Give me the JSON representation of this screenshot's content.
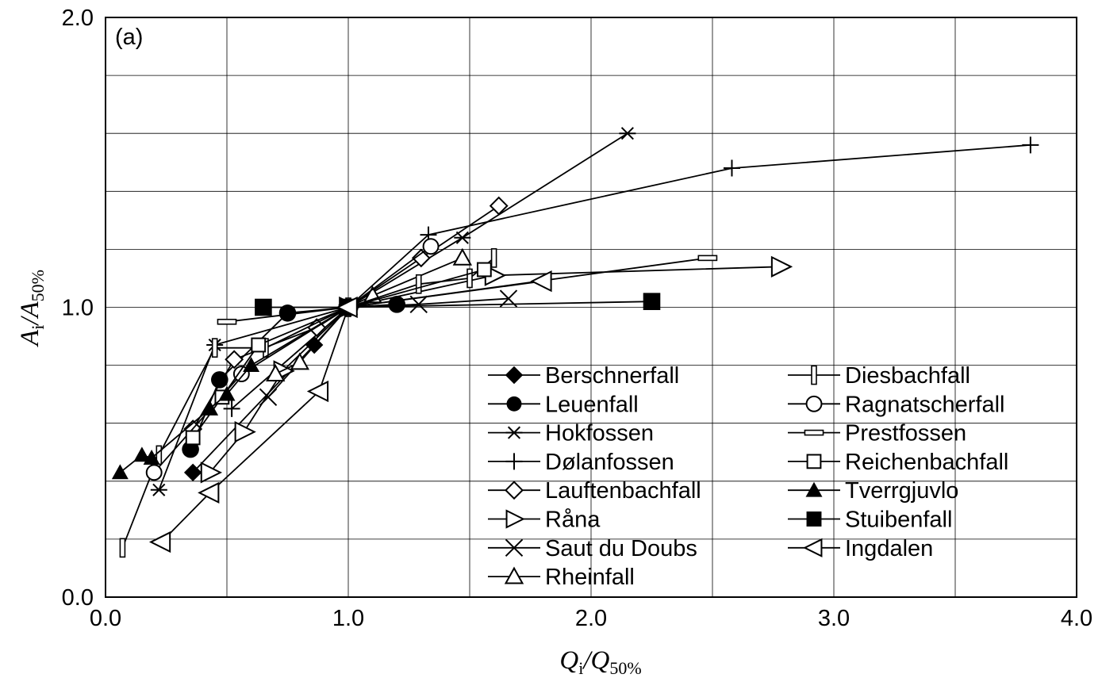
{
  "chart_data": {
    "type": "scatter",
    "panel_label": "(a)",
    "xlabel": {
      "main": "Q",
      "sub1": "i",
      "sep": "/Q",
      "sub2": "50%"
    },
    "ylabel": {
      "main": "A",
      "sub1": "i",
      "sep": "/A",
      "sub2": "50%"
    },
    "xlim": [
      0,
      4
    ],
    "ylim": [
      0,
      2
    ],
    "grid": true,
    "x_ticks": [
      "0.0",
      "1.0",
      "2.0",
      "3.0",
      "4.0"
    ],
    "y_ticks": [
      "0.0",
      "1.0",
      "2.0"
    ],
    "legend_position": "lower-right",
    "series": [
      {
        "name": "Berschnerfall",
        "marker": "diamond-filled",
        "points": [
          [
            0.36,
            0.43
          ],
          [
            0.86,
            0.87
          ],
          [
            1.0,
            1.0
          ]
        ]
      },
      {
        "name": "Leuenfall",
        "marker": "circle-filled",
        "points": [
          [
            0.35,
            0.51
          ],
          [
            0.47,
            0.75
          ],
          [
            0.75,
            0.98
          ],
          [
            1.0,
            1.0
          ],
          [
            1.2,
            1.01
          ]
        ]
      },
      {
        "name": "Hokfossen",
        "marker": "asterisk",
        "points": [
          [
            0.22,
            0.37
          ],
          [
            0.45,
            0.87
          ],
          [
            1.0,
            1.0
          ],
          [
            1.47,
            1.24
          ],
          [
            2.15,
            1.6
          ]
        ]
      },
      {
        "name": "Dølanfossen",
        "marker": "plus",
        "points": [
          [
            0.52,
            0.65
          ],
          [
            1.0,
            1.0
          ],
          [
            1.33,
            1.25
          ],
          [
            2.58,
            1.48
          ],
          [
            3.81,
            1.56
          ]
        ]
      },
      {
        "name": "Lauftenbachfall",
        "marker": "diamond-open",
        "points": [
          [
            0.36,
            0.58
          ],
          [
            0.53,
            0.82
          ],
          [
            0.87,
            0.93
          ],
          [
            1.0,
            1.0
          ],
          [
            1.3,
            1.17
          ],
          [
            1.62,
            1.35
          ]
        ]
      },
      {
        "name": "Råna",
        "marker": "triangle-right-open",
        "points": [
          [
            0.43,
            0.43
          ],
          [
            0.57,
            0.57
          ],
          [
            0.73,
            0.78
          ],
          [
            1.0,
            1.0
          ],
          [
            1.6,
            1.11
          ],
          [
            2.78,
            1.14
          ]
        ]
      },
      {
        "name": "Saut du Doubs",
        "marker": "x",
        "points": [
          [
            0.67,
            0.69
          ],
          [
            1.0,
            1.0
          ],
          [
            1.29,
            1.01
          ],
          [
            1.66,
            1.03
          ]
        ]
      },
      {
        "name": "Rheinfall",
        "marker": "triangle-up-open",
        "points": [
          [
            0.7,
            0.77
          ],
          [
            0.8,
            0.81
          ],
          [
            1.0,
            1.0
          ],
          [
            1.1,
            1.04
          ],
          [
            1.47,
            1.17
          ]
        ]
      },
      {
        "name": "Diesbachfall",
        "marker": "bar-vertical-open",
        "points": [
          [
            0.07,
            0.17
          ],
          [
            0.22,
            0.49
          ],
          [
            0.45,
            0.86
          ],
          [
            0.66,
            0.86
          ],
          [
            1.0,
            1.0
          ],
          [
            1.29,
            1.08
          ],
          [
            1.5,
            1.1
          ],
          [
            1.6,
            1.17
          ]
        ]
      },
      {
        "name": "Ragnatscherfall",
        "marker": "circle-open",
        "points": [
          [
            0.2,
            0.43
          ],
          [
            0.56,
            0.77
          ],
          [
            1.0,
            1.0
          ],
          [
            1.34,
            1.21
          ]
        ]
      },
      {
        "name": "Prestfossen",
        "marker": "bar-horizontal-open",
        "points": [
          [
            0.5,
            0.95
          ],
          [
            1.0,
            1.0
          ],
          [
            2.48,
            1.17
          ]
        ]
      },
      {
        "name": "Reichenbachfall",
        "marker": "square-open",
        "points": [
          [
            0.36,
            0.55
          ],
          [
            0.48,
            0.69
          ],
          [
            0.63,
            0.87
          ],
          [
            1.0,
            1.0
          ],
          [
            1.56,
            1.13
          ]
        ]
      },
      {
        "name": "Tverrgjuvlo",
        "marker": "triangle-up-filled",
        "points": [
          [
            0.06,
            0.43
          ],
          [
            0.15,
            0.49
          ],
          [
            0.19,
            0.48
          ],
          [
            0.43,
            0.65
          ],
          [
            0.5,
            0.7
          ],
          [
            0.6,
            0.8
          ],
          [
            1.0,
            1.0
          ]
        ]
      },
      {
        "name": "Stuibenfall",
        "marker": "square-filled",
        "points": [
          [
            0.65,
            1.0
          ],
          [
            1.0,
            1.0
          ],
          [
            2.25,
            1.02
          ]
        ]
      },
      {
        "name": "Ingdalen",
        "marker": "triangle-left-open",
        "points": [
          [
            0.23,
            0.19
          ],
          [
            0.43,
            0.36
          ],
          [
            0.88,
            0.71
          ],
          [
            1.0,
            1.0
          ],
          [
            1.8,
            1.09
          ]
        ]
      }
    ]
  }
}
